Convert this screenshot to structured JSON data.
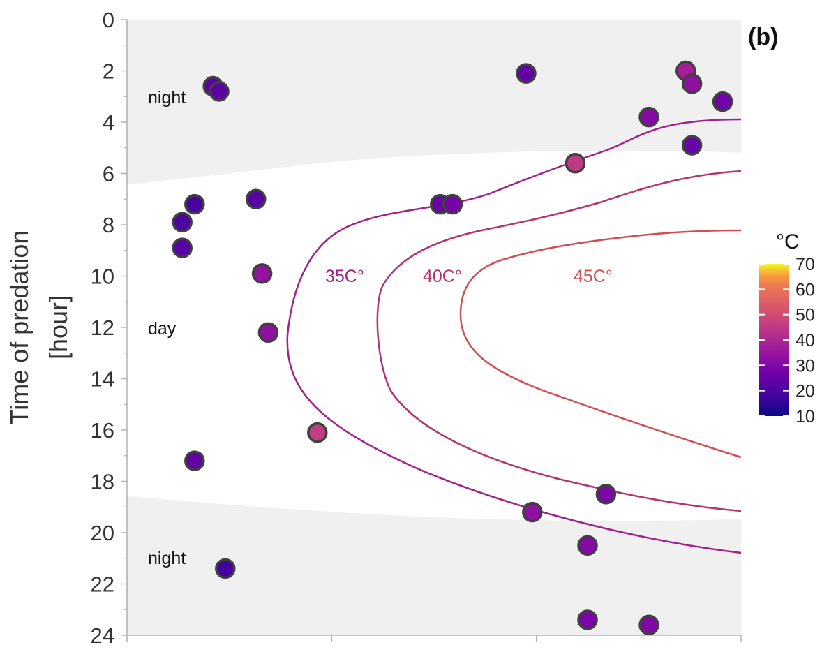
{
  "chart_data": {
    "type": "scatter",
    "panel_label": "(b)",
    "ylabel_lines": [
      "Time of predation",
      "[hour]"
    ],
    "ylim": [
      0,
      24
    ],
    "y_inverted": true,
    "y_ticks": [
      "0",
      "2",
      "4",
      "6",
      "8",
      "10",
      "12",
      "14",
      "16",
      "18",
      "20",
      "22",
      "24"
    ],
    "x_ticks": [
      "",
      "",
      "",
      ""
    ],
    "grid": false,
    "region_labels": {
      "night_top": "night",
      "day": "day",
      "night_bottom": "night"
    },
    "contour_labels": {
      "c35": "35C°",
      "c40": "40C°",
      "c45": "45C°"
    },
    "colors": {
      "night_band": "#f0f0f0",
      "contour35": "#a3208a",
      "contour40": "#b5336f",
      "contour45": "#d24d52",
      "point_outline": "#404040"
    },
    "colorbar": {
      "title": "°C",
      "ticks": [
        "10",
        "20",
        "30",
        "40",
        "50",
        "60",
        "70"
      ],
      "min": 10,
      "max": 70
    },
    "points": [
      {
        "x": 0.09,
        "y": 7.9,
        "t": 20
      },
      {
        "x": 0.09,
        "y": 8.9,
        "t": 22
      },
      {
        "x": 0.11,
        "y": 7.2,
        "t": 19
      },
      {
        "x": 0.11,
        "y": 17.2,
        "t": 24
      },
      {
        "x": 0.14,
        "y": 2.6,
        "t": 22
      },
      {
        "x": 0.15,
        "y": 2.8,
        "t": 23
      },
      {
        "x": 0.16,
        "y": 21.4,
        "t": 18
      },
      {
        "x": 0.21,
        "y": 7.0,
        "t": 22
      },
      {
        "x": 0.22,
        "y": 9.9,
        "t": 34
      },
      {
        "x": 0.23,
        "y": 12.2,
        "t": 33
      },
      {
        "x": 0.31,
        "y": 16.1,
        "t": 46
      },
      {
        "x": 0.51,
        "y": 7.2,
        "t": 26
      },
      {
        "x": 0.53,
        "y": 7.2,
        "t": 28
      },
      {
        "x": 0.65,
        "y": 2.1,
        "t": 24
      },
      {
        "x": 0.66,
        "y": 19.2,
        "t": 33
      },
      {
        "x": 0.73,
        "y": 5.6,
        "t": 45
      },
      {
        "x": 0.75,
        "y": 20.5,
        "t": 31
      },
      {
        "x": 0.75,
        "y": 23.4,
        "t": 29
      },
      {
        "x": 0.78,
        "y": 18.5,
        "t": 29
      },
      {
        "x": 0.85,
        "y": 3.8,
        "t": 31
      },
      {
        "x": 0.85,
        "y": 23.6,
        "t": 30
      },
      {
        "x": 0.91,
        "y": 2.0,
        "t": 38
      },
      {
        "x": 0.92,
        "y": 2.5,
        "t": 33
      },
      {
        "x": 0.92,
        "y": 4.9,
        "t": 25
      },
      {
        "x": 0.97,
        "y": 3.2,
        "t": 27
      }
    ]
  }
}
